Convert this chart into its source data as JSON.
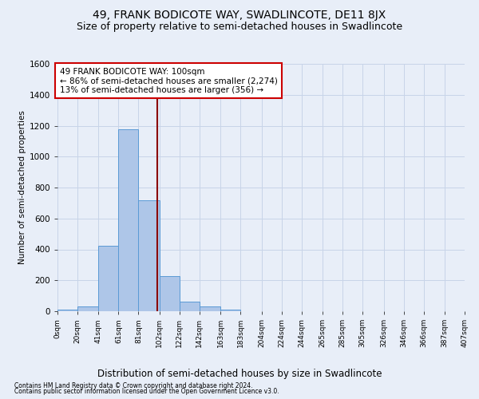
{
  "title": "49, FRANK BODICOTE WAY, SWADLINCOTE, DE11 8JX",
  "subtitle": "Size of property relative to semi-detached houses in Swadlincote",
  "xlabel": "Distribution of semi-detached houses by size in Swadlincote",
  "ylabel": "Number of semi-detached properties",
  "footnote1": "Contains HM Land Registry data © Crown copyright and database right 2024.",
  "footnote2": "Contains public sector information licensed under the Open Government Licence v3.0.",
  "bin_edges": [
    0,
    20,
    41,
    61,
    81,
    102,
    122,
    142,
    163,
    183,
    204,
    224,
    244,
    265,
    285,
    305,
    326,
    346,
    366,
    387,
    407
  ],
  "bar_heights": [
    10,
    30,
    425,
    1175,
    715,
    225,
    62,
    30,
    10,
    0,
    0,
    0,
    0,
    0,
    0,
    0,
    0,
    0,
    0,
    0
  ],
  "bar_color": "#aec6e8",
  "bar_edge_color": "#5a9ad5",
  "property_size": 100,
  "property_line_color": "#8b0000",
  "annotation_line1": "49 FRANK BODICOTE WAY: 100sqm",
  "annotation_line2": "← 86% of semi-detached houses are smaller (2,274)",
  "annotation_line3": "13% of semi-detached houses are larger (356) →",
  "annotation_box_color": "#ffffff",
  "annotation_box_edge": "#cc0000",
  "ylim": [
    0,
    1600
  ],
  "yticks": [
    0,
    200,
    400,
    600,
    800,
    1000,
    1200,
    1400,
    1600
  ],
  "grid_color": "#c8d4e8",
  "bg_color": "#e8eef8",
  "title_fontsize": 10,
  "subtitle_fontsize": 9,
  "annotation_fontsize": 7.5,
  "ylabel_fontsize": 7.5,
  "xlabel_fontsize": 8.5,
  "xtick_fontsize": 6.5,
  "ytick_fontsize": 7.5,
  "footnote_fontsize": 5.5
}
